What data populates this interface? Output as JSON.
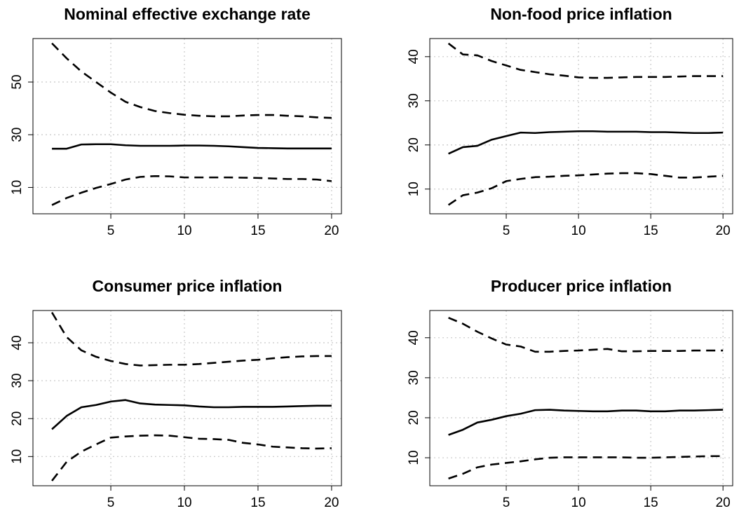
{
  "chart_data": [
    {
      "type": "line",
      "title": "Nominal effective exchange rate",
      "x": [
        1,
        2,
        3,
        4,
        5,
        6,
        7,
        8,
        9,
        10,
        11,
        12,
        13,
        14,
        15,
        16,
        17,
        18,
        19,
        20
      ],
      "xlim": [
        -0.29,
        20.67
      ],
      "xticks": [
        5,
        10,
        15,
        20
      ],
      "ylim": [
        0,
        66.5
      ],
      "yticks": [
        10,
        30,
        50
      ],
      "grid": true,
      "series": [
        {
          "color": "#000000",
          "line_style": "dashed",
          "values": [
            64.7,
            59,
            54,
            50,
            46,
            42.5,
            40.5,
            39,
            38.2,
            37.6,
            37.2,
            37,
            37,
            37.3,
            37.5,
            37.5,
            37.2,
            37,
            36.6,
            36.4
          ]
        },
        {
          "color": "#000000",
          "line_style": "solid",
          "values": [
            24.7,
            24.7,
            26.3,
            26.4,
            26.4,
            26,
            25.8,
            25.8,
            25.8,
            25.9,
            25.9,
            25.8,
            25.6,
            25.3,
            25,
            24.9,
            24.8,
            24.8,
            24.8,
            24.8
          ]
        },
        {
          "color": "#000000",
          "line_style": "dashed",
          "values": [
            3.3,
            6,
            8,
            9.8,
            11.3,
            13,
            14,
            14.3,
            14.2,
            13.8,
            13.8,
            13.8,
            13.8,
            13.7,
            13.6,
            13.4,
            13.2,
            13.2,
            13,
            12.4
          ]
        }
      ]
    },
    {
      "type": "line",
      "title": "Non-food price inflation",
      "x": [
        1,
        2,
        3,
        4,
        5,
        6,
        7,
        8,
        9,
        10,
        11,
        12,
        13,
        14,
        15,
        16,
        17,
        18,
        19,
        20
      ],
      "xlim": [
        -0.29,
        20.67
      ],
      "xticks": [
        5,
        10,
        15,
        20
      ],
      "ylim": [
        4.4,
        44.1
      ],
      "yticks": [
        10,
        20,
        30,
        40
      ],
      "grid": true,
      "series": [
        {
          "color": "#000000",
          "line_style": "dashed",
          "values": [
            43,
            40.5,
            40.3,
            39,
            38,
            37,
            36.5,
            36,
            35.7,
            35.3,
            35.2,
            35.2,
            35.3,
            35.4,
            35.4,
            35.4,
            35.5,
            35.6,
            35.6,
            35.6
          ]
        },
        {
          "color": "#000000",
          "line_style": "solid",
          "values": [
            18,
            19.5,
            19.8,
            21.2,
            22,
            22.8,
            22.7,
            22.9,
            23,
            23.1,
            23.1,
            23,
            23,
            23,
            22.9,
            22.9,
            22.8,
            22.7,
            22.7,
            22.8
          ]
        },
        {
          "color": "#000000",
          "line_style": "dashed",
          "values": [
            6.4,
            8.6,
            9.2,
            10.2,
            11.8,
            12.3,
            12.7,
            12.8,
            13,
            13.1,
            13.3,
            13.5,
            13.6,
            13.6,
            13.4,
            13,
            12.6,
            12.6,
            12.8,
            13
          ]
        }
      ]
    },
    {
      "type": "line",
      "title": "Consumer price inflation",
      "x": [
        1,
        2,
        3,
        4,
        5,
        6,
        7,
        8,
        9,
        10,
        11,
        12,
        13,
        14,
        15,
        16,
        17,
        18,
        19,
        20
      ],
      "xlim": [
        -0.29,
        20.67
      ],
      "xticks": [
        5,
        10,
        15,
        20
      ],
      "ylim": [
        2.3,
        48.5
      ],
      "yticks": [
        10,
        20,
        30,
        40
      ],
      "grid": true,
      "series": [
        {
          "color": "#000000",
          "line_style": "dashed",
          "values": [
            48,
            41.5,
            38,
            36.3,
            35.2,
            34.4,
            34,
            34.1,
            34.2,
            34.2,
            34.4,
            34.7,
            35,
            35.3,
            35.5,
            35.9,
            36.2,
            36.4,
            36.5,
            36.5
          ]
        },
        {
          "color": "#000000",
          "line_style": "solid",
          "values": [
            17.2,
            20.7,
            23,
            23.6,
            24.5,
            24.9,
            24,
            23.7,
            23.6,
            23.5,
            23.2,
            23,
            23,
            23.1,
            23.1,
            23.1,
            23.2,
            23.3,
            23.4,
            23.4
          ]
        },
        {
          "color": "#000000",
          "line_style": "dashed",
          "values": [
            3.6,
            8.6,
            11.3,
            13.2,
            15,
            15.3,
            15.5,
            15.6,
            15.5,
            15.1,
            14.7,
            14.6,
            14.4,
            13.6,
            13.2,
            12.6,
            12.4,
            12.2,
            12.1,
            12.2
          ]
        }
      ]
    },
    {
      "type": "line",
      "title": "Producer price inflation",
      "x": [
        1,
        2,
        3,
        4,
        5,
        6,
        7,
        8,
        9,
        10,
        11,
        12,
        13,
        14,
        15,
        16,
        17,
        18,
        19,
        20
      ],
      "xlim": [
        -0.29,
        20.67
      ],
      "xticks": [
        5,
        10,
        15,
        20
      ],
      "ylim": [
        3,
        46.8
      ],
      "yticks": [
        10,
        20,
        30,
        40
      ],
      "grid": true,
      "series": [
        {
          "color": "#000000",
          "line_style": "dashed",
          "values": [
            45,
            43.5,
            41.5,
            39.8,
            38.3,
            37.8,
            36.5,
            36.5,
            36.7,
            36.8,
            37,
            37.2,
            36.6,
            36.6,
            36.7,
            36.7,
            36.7,
            36.8,
            36.8,
            36.8
          ]
        },
        {
          "color": "#000000",
          "line_style": "solid",
          "values": [
            15.7,
            17,
            18.8,
            19.5,
            20.4,
            21,
            21.9,
            22,
            21.8,
            21.7,
            21.6,
            21.6,
            21.8,
            21.8,
            21.6,
            21.6,
            21.8,
            21.8,
            21.9,
            22
          ]
        },
        {
          "color": "#000000",
          "line_style": "dashed",
          "values": [
            4.8,
            6,
            7.6,
            8.3,
            8.7,
            9.1,
            9.6,
            10,
            10.1,
            10.1,
            10.1,
            10.1,
            10.1,
            10,
            10,
            10.1,
            10.2,
            10.3,
            10.4,
            10.4
          ]
        }
      ]
    }
  ]
}
